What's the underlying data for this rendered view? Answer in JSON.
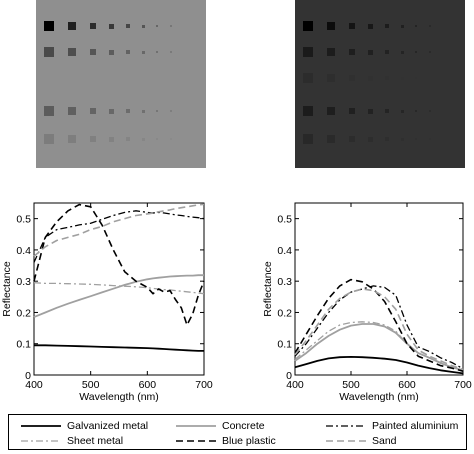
{
  "patch_panels": [
    {
      "name": "left",
      "background": "#8f8f8f",
      "rows": [
        [
          "#000000",
          "#202020",
          "#2c2c2c",
          "#383838",
          "#464646",
          "#555555",
          "#666666",
          "#777777"
        ],
        [
          "#4a4a4a",
          "#4e4e4e",
          "#565656",
          "#5c5c5c",
          "#626262",
          "#686868",
          "#707070",
          "#7a7a7a"
        ],
        [
          "#8f8f8f",
          "#8f8f8f",
          "#8f8f8f",
          "#8f8f8f",
          "#8f8f8f",
          "#8f8f8f",
          "#8f8f8f",
          "#8f8f8f"
        ],
        [
          "#5c5c5c",
          "#606060",
          "#646464",
          "#686868",
          "#6c6c6c",
          "#707070",
          "#767676",
          "#7e7e7e"
        ],
        [
          "#7c7c7c",
          "#7e7e7e",
          "#808080",
          "#828282",
          "#848484",
          "#868686",
          "#888888",
          "#8a8a8a"
        ]
      ]
    },
    {
      "name": "right",
      "background": "#333333",
      "rows": [
        [
          "#000000",
          "#0c0c0c",
          "#141414",
          "#181818",
          "#1c1c1c",
          "#202020",
          "#242424",
          "#2a2a2a"
        ],
        [
          "#1a1a1a",
          "#1c1c1c",
          "#1e1e1e",
          "#202020",
          "#222222",
          "#242424",
          "#262626",
          "#2a2a2a"
        ],
        [
          "#2c2c2c",
          "#2e2e2e",
          "#303030",
          "#313131",
          "#313131",
          "#323232",
          "#323232",
          "#333333"
        ],
        [
          "#1c1c1c",
          "#1e1e1e",
          "#202020",
          "#222222",
          "#242424",
          "#262626",
          "#282828",
          "#2c2c2c"
        ],
        [
          "#282828",
          "#2a2a2a",
          "#2c2c2c",
          "#2d2d2d",
          "#2e2e2e",
          "#2f2f2f",
          "#303030",
          "#313131"
        ]
      ]
    }
  ],
  "chart_data": [
    {
      "type": "line",
      "xlabel": "Wavelength (nm)",
      "ylabel": "Reflectance",
      "xlim": [
        400,
        700
      ],
      "ylim": [
        0,
        0.55
      ],
      "xticks": [
        400,
        500,
        600,
        700
      ],
      "yticks": [
        0,
        0.1,
        0.2,
        0.3,
        0.4,
        0.5
      ],
      "ytick_labels": [
        "0",
        "0.1",
        "0.2",
        "0.3",
        "0.4",
        "0.5"
      ],
      "x": [
        400,
        420,
        440,
        460,
        480,
        500,
        520,
        540,
        560,
        580,
        600,
        610,
        620,
        630,
        640,
        650,
        660,
        670,
        680,
        690,
        700
      ],
      "series": [
        {
          "name": "Galvanized metal",
          "values": [
            0.095,
            0.095,
            0.094,
            0.093,
            0.092,
            0.091,
            0.09,
            0.089,
            0.088,
            0.087,
            0.086,
            0.085,
            0.084,
            0.083,
            0.082,
            0.081,
            0.08,
            0.079,
            0.078,
            0.077,
            0.077
          ]
        },
        {
          "name": "Concrete",
          "values": [
            0.185,
            0.2,
            0.215,
            0.228,
            0.24,
            0.252,
            0.264,
            0.276,
            0.288,
            0.298,
            0.306,
            0.309,
            0.311,
            0.313,
            0.315,
            0.316,
            0.317,
            0.318,
            0.318,
            0.319,
            0.319
          ]
        },
        {
          "name": "Painted aluminium",
          "values": [
            0.36,
            0.44,
            0.465,
            0.472,
            0.48,
            0.485,
            0.498,
            0.51,
            0.52,
            0.525,
            0.52,
            0.518,
            0.52,
            0.518,
            0.515,
            0.512,
            0.51,
            0.507,
            0.505,
            0.503,
            0.5
          ]
        },
        {
          "name": "Sheet metal",
          "values": [
            0.295,
            0.293,
            0.293,
            0.292,
            0.291,
            0.29,
            0.288,
            0.286,
            0.284,
            0.282,
            0.279,
            0.277,
            0.275,
            0.273,
            0.272,
            0.27,
            0.268,
            0.266,
            0.264,
            0.262,
            0.26
          ]
        },
        {
          "name": "Blue plastic",
          "values": [
            0.3,
            0.44,
            0.49,
            0.525,
            0.545,
            0.538,
            0.48,
            0.4,
            0.33,
            0.3,
            0.28,
            0.26,
            0.275,
            0.265,
            0.27,
            0.24,
            0.215,
            0.16,
            0.195,
            0.255,
            0.3
          ]
        },
        {
          "name": "Sand",
          "values": [
            0.38,
            0.41,
            0.43,
            0.44,
            0.45,
            0.465,
            0.475,
            0.49,
            0.5,
            0.51,
            0.515,
            0.518,
            0.522,
            0.525,
            0.528,
            0.532,
            0.535,
            0.538,
            0.541,
            0.544,
            0.546
          ]
        }
      ]
    },
    {
      "type": "line",
      "xlabel": "Wavelength (nm)",
      "ylabel": "Reflectance",
      "xlim": [
        400,
        700
      ],
      "ylim": [
        0,
        0.55
      ],
      "xticks": [
        400,
        500,
        600,
        700
      ],
      "yticks": [
        0,
        0.1,
        0.2,
        0.3,
        0.4,
        0.5
      ],
      "ytick_labels": [
        "0",
        "0.1",
        "0.2",
        "0.3",
        "0.4",
        "0.5"
      ],
      "x": [
        400,
        420,
        440,
        460,
        480,
        500,
        520,
        540,
        560,
        580,
        600,
        620,
        640,
        660,
        680,
        700
      ],
      "series": [
        {
          "name": "Galvanized metal",
          "values": [
            0.025,
            0.035,
            0.045,
            0.053,
            0.057,
            0.058,
            0.057,
            0.055,
            0.052,
            0.048,
            0.04,
            0.03,
            0.022,
            0.015,
            0.01,
            0.005
          ]
        },
        {
          "name": "Concrete",
          "values": [
            0.045,
            0.07,
            0.1,
            0.125,
            0.145,
            0.158,
            0.163,
            0.163,
            0.155,
            0.135,
            0.1,
            0.07,
            0.055,
            0.038,
            0.025,
            0.015
          ]
        },
        {
          "name": "Painted aluminium",
          "values": [
            0.06,
            0.1,
            0.15,
            0.2,
            0.24,
            0.265,
            0.275,
            0.285,
            0.28,
            0.255,
            0.16,
            0.09,
            0.075,
            0.055,
            0.04,
            0.02
          ]
        },
        {
          "name": "Sheet metal",
          "values": [
            0.05,
            0.08,
            0.11,
            0.14,
            0.16,
            0.168,
            0.17,
            0.168,
            0.16,
            0.14,
            0.1,
            0.07,
            0.055,
            0.04,
            0.025,
            0.015
          ]
        },
        {
          "name": "Blue plastic",
          "values": [
            0.07,
            0.13,
            0.19,
            0.245,
            0.285,
            0.305,
            0.298,
            0.275,
            0.235,
            0.17,
            0.1,
            0.06,
            0.045,
            0.03,
            0.022,
            0.012
          ]
        },
        {
          "name": "Sand",
          "values": [
            0.065,
            0.11,
            0.16,
            0.21,
            0.245,
            0.265,
            0.275,
            0.27,
            0.25,
            0.21,
            0.13,
            0.08,
            0.06,
            0.045,
            0.03,
            0.018
          ]
        }
      ]
    }
  ],
  "series_styles": [
    {
      "name": "Galvanized metal",
      "color": "#000000",
      "dash": "",
      "width": 1.8
    },
    {
      "name": "Concrete",
      "color": "#a0a0a0",
      "dash": "",
      "width": 1.8
    },
    {
      "name": "Painted aluminium",
      "color": "#000000",
      "dash": "7,3,2,3",
      "width": 1.3
    },
    {
      "name": "Sheet metal",
      "color": "#a0a0a0",
      "dash": "7,3,2,3",
      "width": 1.3
    },
    {
      "name": "Blue plastic",
      "color": "#000000",
      "dash": "7,4",
      "width": 1.6
    },
    {
      "name": "Sand",
      "color": "#a0a0a0",
      "dash": "7,4",
      "width": 1.6
    }
  ],
  "legend": {
    "entries": [
      "Galvanized metal",
      "Concrete",
      "Painted aluminium",
      "Sheet metal",
      "Blue plastic",
      "Sand"
    ]
  }
}
